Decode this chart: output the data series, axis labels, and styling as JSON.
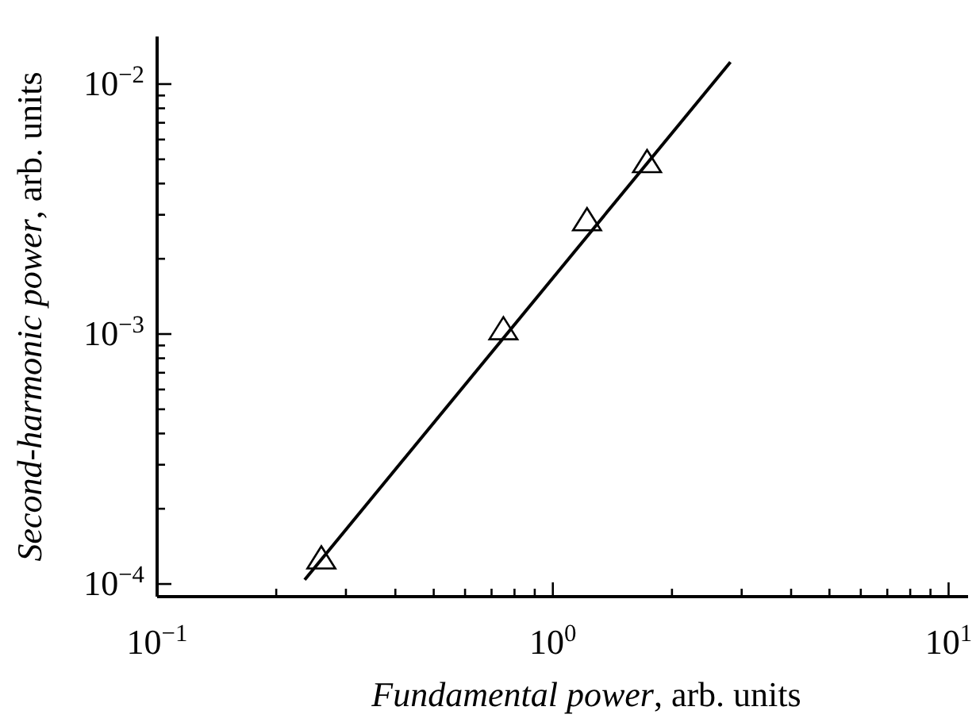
{
  "chart_data": {
    "type": "scatter",
    "xlabel": "Fundamental power, arb. units",
    "ylabel": "Second-harmonic power, arb. units",
    "log": "xy",
    "xlim": [
      0.1,
      11.2
    ],
    "ylim": [
      8.9e-05,
      0.0155
    ],
    "xticks": [
      {
        "value": 0.1,
        "label": "10$^{−1}$"
      },
      {
        "value": 0.2,
        "label": null
      },
      {
        "value": 0.3,
        "label": null
      },
      {
        "value": 0.4,
        "label": null
      },
      {
        "value": 0.5,
        "label": null
      },
      {
        "value": 0.6,
        "label": null
      },
      {
        "value": 0.7,
        "label": null
      },
      {
        "value": 0.8,
        "label": null
      },
      {
        "value": 0.9,
        "label": null
      },
      {
        "value": 1,
        "label": "10$^{0}$"
      },
      {
        "value": 2,
        "label": null
      },
      {
        "value": 3,
        "label": null
      },
      {
        "value": 4,
        "label": null
      },
      {
        "value": 5,
        "label": null
      },
      {
        "value": 6,
        "label": null
      },
      {
        "value": 7,
        "label": null
      },
      {
        "value": 8,
        "label": null
      },
      {
        "value": 9,
        "label": null
      },
      {
        "value": 10,
        "label": "10$^{1}$"
      }
    ],
    "yticks": [
      {
        "value": 0.0001,
        "label": "10$^{−4}$"
      },
      {
        "value": 0.0002,
        "label": null
      },
      {
        "value": 0.0003,
        "label": null
      },
      {
        "value": 0.0004,
        "label": null
      },
      {
        "value": 0.0005,
        "label": null
      },
      {
        "value": 0.0006,
        "label": null
      },
      {
        "value": 0.0007,
        "label": null
      },
      {
        "value": 0.0008,
        "label": null
      },
      {
        "value": 0.0009,
        "label": null
      },
      {
        "value": 0.001,
        "label": "10$^{−3}$"
      },
      {
        "value": 0.002,
        "label": null
      },
      {
        "value": 0.003,
        "label": null
      },
      {
        "value": 0.004,
        "label": null
      },
      {
        "value": 0.005,
        "label": null
      },
      {
        "value": 0.006,
        "label": null
      },
      {
        "value": 0.007,
        "label": null
      },
      {
        "value": 0.008,
        "label": null
      },
      {
        "value": 0.009,
        "label": null
      },
      {
        "value": 0.01,
        "label": "10$^{−2}$"
      }
    ],
    "grid": false,
    "series": [
      {
        "color": "#000000",
        "marker": "triangle",
        "x": [
          0.26,
          0.75,
          1.22,
          1.73
        ],
        "values": [
          0.000126,
          0.00104,
          0.00284,
          0.00485
        ]
      },
      {
        "type": "line",
        "color": "#000000",
        "line_style": "solid",
        "x": [
          0.236,
          2.81
        ],
        "values": [
          0.000104,
          0.01225
        ]
      }
    ]
  }
}
